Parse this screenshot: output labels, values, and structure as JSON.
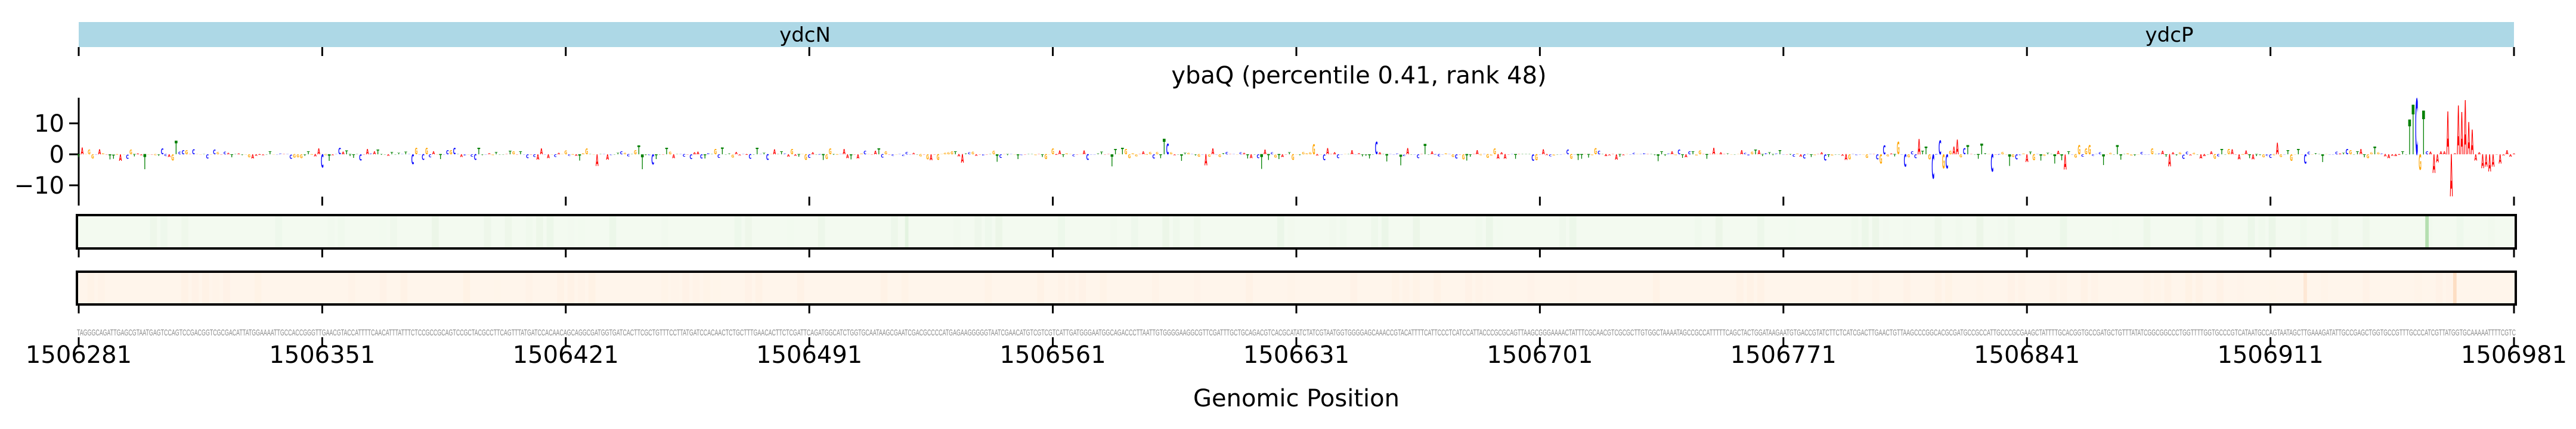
{
  "chart_data": {
    "type": "sequence-logo",
    "title": "ybaQ (percentile 0.41, rank 48)",
    "xlabel": "Genomic Position",
    "ylabel": "",
    "x_range": [
      1506281,
      1506981
    ],
    "x_ticks": [
      "1506281",
      "1506351",
      "1506421",
      "1506491",
      "1506561",
      "1506631",
      "1506701",
      "1506771",
      "1506841",
      "1506911",
      "1506981"
    ],
    "y_ticks": [
      {
        "value": 10,
        "label": "10"
      },
      {
        "value": 0,
        "label": "0"
      },
      {
        "value": -10,
        "label": "−10"
      }
    ],
    "ylim": [
      -13.5,
      18.5
    ],
    "genes": [
      {
        "name": "ydcN",
        "start": 1506281,
        "end": 1506870,
        "strand": "+"
      },
      {
        "name": "ydcP",
        "start": 1506787,
        "end": 1506981,
        "strand": "+"
      }
    ],
    "sequence": "TAGGGCAGATTGAGCGTAATGAGTCCAGTCCGACGGTCGCGACATTATGGAAAATTGCCACCGGGTTGAACGTACCATTTTCAACATTTATTTCTCCGCCGCAGTCCGCTACGCCTTCAGTTTATGATCCACAACAGCAGGCGATGGTGATCACTTCGCTGTTTCCTTATGATCCACAACTCTGCTTTGAACACTTCTCGATTCAGATGGCATCTGGTGCAATAAGCGAATCGACGCCCCATGAGAAGGGGGTAATCGAACATGTCGTCGTCATTGATGGGAATGGCAGACCCTTAATTGTGGGGAAGGCGTTCGATTTGCTGCAGACGTCACGCATATCTATCGTAATGGTGGGGAGCAAACCGTACATTTTCATTCCCTCATCCATTACCCGCGCAGTTAAGCGGGAAAACTATTTCGCAACGTCGCGCTTGTGGCTAAAATAGCCGCCATTTTTCAGCTACTGGATAAGAATGTGACCGTATCTTCTCATCGACTTGAACTGTTAAGCCCGGCACGCGATGCCGCCATTGCCCGCGAAGCTATTTTGCACGGTGCCGATGCTGTTTATATCGGCGGCCCTGGTTTTGGTGCCCGTCATAATGCCAGTAATAGCTTGAAAGATATTGCCGAGCTGGTGCCGTTTGCCCATCGTTATGGTGCAAAAATTTTCGTC",
    "contribution_peaks": [
      {
        "index": 525,
        "value": -4.0
      },
      {
        "index": 529,
        "value": 5.0
      },
      {
        "index": 531,
        "value": 2.5
      },
      {
        "index": 533,
        "value": -7.8
      },
      {
        "index": 535,
        "value": 4.5
      },
      {
        "index": 536,
        "value": -4.5
      },
      {
        "index": 537,
        "value": -4.5
      },
      {
        "index": 539,
        "value": 2.5
      },
      {
        "index": 543,
        "value": 3.0
      },
      {
        "index": 547,
        "value": 3.5
      },
      {
        "index": 550,
        "value": -5.6
      },
      {
        "index": 560,
        "value": -2.5
      },
      {
        "index": 568,
        "value": -3.0
      },
      {
        "index": 575,
        "value": 3.0
      },
      {
        "index": 578,
        "value": 3.0
      },
      {
        "index": 582,
        "value": -3.5
      },
      {
        "index": 586,
        "value": 3.0
      },
      {
        "index": 640,
        "value": -3.0
      },
      {
        "index": 645,
        "value": -2.5
      },
      {
        "index": 660,
        "value": 2.5
      },
      {
        "index": 668,
        "value": 1.0
      },
      {
        "index": 670,
        "value": 11.3
      },
      {
        "index": 671,
        "value": 16.0
      },
      {
        "index": 672,
        "value": 18.0
      },
      {
        "index": 673,
        "value": -5.0
      },
      {
        "index": 674,
        "value": 14.2
      },
      {
        "index": 675,
        "value": 1.0
      },
      {
        "index": 676,
        "value": 0.8
      },
      {
        "index": 677,
        "value": -6.0
      },
      {
        "index": 678,
        "value": -2.6
      },
      {
        "index": 679,
        "value": 1.0
      },
      {
        "index": 680,
        "value": 1.0
      },
      {
        "index": 681,
        "value": 13.9
      },
      {
        "index": 682,
        "value": -13.6
      },
      {
        "index": 683,
        "value": 0.3
      },
      {
        "index": 684,
        "value": 15.8
      },
      {
        "index": 685,
        "value": 13.7
      },
      {
        "index": 686,
        "value": 17.5
      },
      {
        "index": 687,
        "value": 10.4
      },
      {
        "index": 688,
        "value": 8.0
      },
      {
        "index": 689,
        "value": -2.0
      },
      {
        "index": 690,
        "value": 0.6
      },
      {
        "index": 691,
        "value": -4.5
      },
      {
        "index": 692,
        "value": -4.0
      },
      {
        "index": 694,
        "value": -4.0
      },
      {
        "index": 696,
        "value": -3.0
      }
    ],
    "background_noise_scale": 2.2,
    "tracks": [
      {
        "name": "track-green",
        "base_color": "#f3faf0",
        "highlight_color": "#b5dfb0",
        "highlights": [
          {
            "index": 675,
            "strength": 1.0
          },
          {
            "index": 238,
            "strength": 0.25
          }
        ]
      },
      {
        "name": "track-orange",
        "base_color": "#fff5eb",
        "highlight_color": "#fddcbf",
        "highlights": [
          {
            "index": 683,
            "strength": 0.9
          },
          {
            "index": 640,
            "strength": 0.5
          }
        ]
      }
    ],
    "colors": {
      "A": "#ff0000",
      "C": "#0000ff",
      "G": "#ffa500",
      "T": "#008000",
      "gene": "#add8e6"
    }
  }
}
